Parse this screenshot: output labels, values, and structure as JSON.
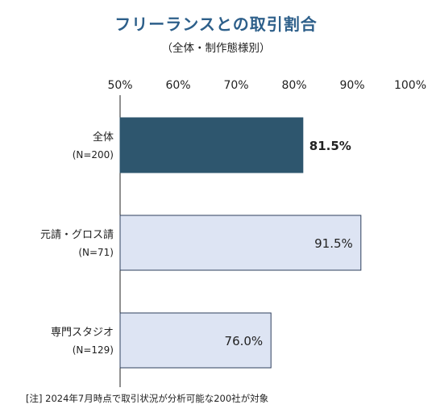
{
  "chart_data": {
    "type": "bar",
    "orientation": "horizontal",
    "title": "フリーランスとの取引割合",
    "subtitle": "（全体・制作態様別）",
    "categories": [
      {
        "label": "全体",
        "n_label": "(N=200)"
      },
      {
        "label": "元請・グロス請",
        "n_label": "(N=71)"
      },
      {
        "label": "専門スタジオ",
        "n_label": "(N=129)"
      }
    ],
    "values": [
      81.5,
      91.5,
      76.0
    ],
    "value_labels": [
      "81.5%",
      "91.5%",
      "76.0%"
    ],
    "xlim": [
      50,
      100
    ],
    "xticks": [
      "50%",
      "60%",
      "70%",
      "80%",
      "90%",
      "100%"
    ],
    "bar_colors": [
      "#2e566e",
      "#dde4f3",
      "#dde4f3"
    ],
    "grid": false,
    "footnote": "[注] 2024年7月時点で取引状況が分析可能な200社が対象"
  }
}
